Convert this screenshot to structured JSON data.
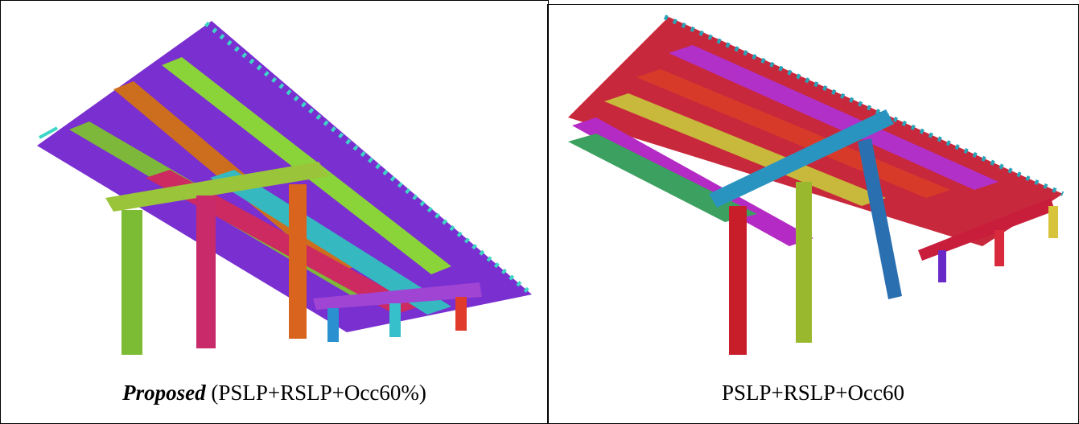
{
  "panels": [
    {
      "caption": {
        "emphasis": "Proposed",
        "rest": " (PSLP+RSLP+Occ60%)"
      }
    },
    {
      "caption": {
        "text": "PSLP+RSLP+Occ60"
      }
    }
  ]
}
